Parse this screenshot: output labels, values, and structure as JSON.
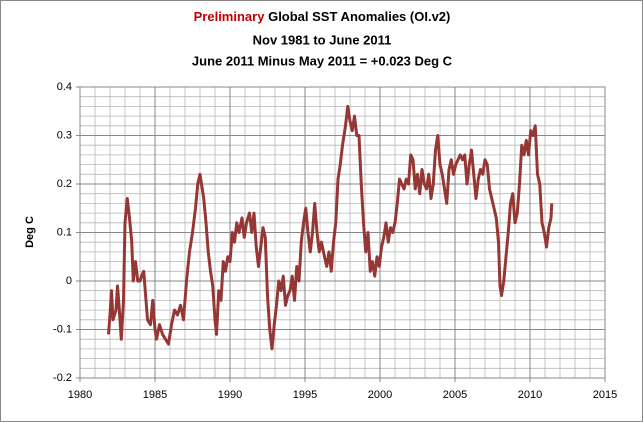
{
  "chart_data": {
    "type": "line",
    "title_highlight": "Preliminary",
    "title": "Global SST Anomalies  (OI.v2)",
    "subtitle": "Nov 1981 to June 2011",
    "annotation": "June 2011 Minus May 2011 = +0.023 Deg C",
    "ylabel": "Deg C",
    "highlight_color": "#c00000",
    "color": "#953735",
    "grid": true,
    "minor_grid": {
      "x": 1,
      "y": 0.02
    },
    "xlim": [
      1980,
      2015
    ],
    "xticks": [
      1980,
      1985,
      1990,
      1995,
      2000,
      2005,
      2010,
      2015
    ],
    "ylim": [
      -0.2,
      0.4
    ],
    "yticks": [
      0.4,
      0.3,
      0.2,
      0.1,
      0,
      -0.1,
      -0.2
    ],
    "x": [
      1981.9,
      1982.0,
      1982.1,
      1982.2,
      1982.4,
      1982.5,
      1982.6,
      1982.75,
      1982.9,
      1983.0,
      1983.15,
      1983.3,
      1983.45,
      1983.55,
      1983.7,
      1983.85,
      1984.0,
      1984.1,
      1984.25,
      1984.4,
      1984.5,
      1984.7,
      1984.85,
      1985.0,
      1985.1,
      1985.3,
      1985.5,
      1985.7,
      1985.9,
      1986.1,
      1986.3,
      1986.5,
      1986.7,
      1986.9,
      1987.1,
      1987.3,
      1987.5,
      1987.7,
      1987.85,
      1988.0,
      1988.1,
      1988.25,
      1988.4,
      1988.55,
      1988.7,
      1988.85,
      1989.0,
      1989.1,
      1989.25,
      1989.4,
      1989.55,
      1989.7,
      1989.85,
      1990.0,
      1990.15,
      1990.3,
      1990.45,
      1990.6,
      1990.8,
      1990.95,
      1991.1,
      1991.3,
      1991.45,
      1991.6,
      1991.75,
      1991.9,
      1992.05,
      1992.2,
      1992.35,
      1992.5,
      1992.65,
      1992.8,
      1992.95,
      1993.1,
      1993.25,
      1993.4,
      1993.55,
      1993.7,
      1993.85,
      1994.0,
      1994.15,
      1994.3,
      1994.45,
      1994.6,
      1994.75,
      1994.9,
      1995.05,
      1995.2,
      1995.35,
      1995.5,
      1995.65,
      1995.8,
      1995.95,
      1996.1,
      1996.3,
      1996.45,
      1996.6,
      1996.75,
      1996.9,
      1997.05,
      1997.2,
      1997.35,
      1997.5,
      1997.7,
      1997.85,
      1998.0,
      1998.15,
      1998.3,
      1998.45,
      1998.6,
      1998.75,
      1998.9,
      1999.05,
      1999.2,
      1999.35,
      1999.5,
      1999.65,
      1999.8,
      1999.95,
      2000.1,
      2000.25,
      2000.4,
      2000.55,
      2000.7,
      2000.85,
      2001.0,
      2001.15,
      2001.3,
      2001.45,
      2001.6,
      2001.75,
      2001.9,
      2002.05,
      2002.2,
      2002.35,
      2002.5,
      2002.65,
      2002.8,
      2002.95,
      2003.1,
      2003.25,
      2003.4,
      2003.55,
      2003.7,
      2003.85,
      2004.0,
      2004.15,
      2004.3,
      2004.45,
      2004.6,
      2004.75,
      2004.9,
      2005.05,
      2005.2,
      2005.35,
      2005.5,
      2005.65,
      2005.8,
      2005.95,
      2006.1,
      2006.25,
      2006.4,
      2006.55,
      2006.7,
      2006.85,
      2007.0,
      2007.15,
      2007.3,
      2007.45,
      2007.6,
      2007.75,
      2007.9,
      2008.0,
      2008.1,
      2008.25,
      2008.4,
      2008.55,
      2008.7,
      2008.85,
      2009.0,
      2009.15,
      2009.3,
      2009.45,
      2009.6,
      2009.75,
      2009.9,
      2010.05,
      2010.2,
      2010.35,
      2010.5,
      2010.65,
      2010.8,
      2010.95,
      2011.1,
      2011.25,
      2011.4,
      2011.45
    ],
    "values": [
      -0.11,
      -0.07,
      -0.02,
      -0.08,
      -0.06,
      -0.01,
      -0.05,
      -0.12,
      -0.04,
      0.12,
      0.17,
      0.13,
      0.08,
      0.0,
      0.04,
      0.0,
      0.0,
      0.01,
      0.02,
      -0.04,
      -0.08,
      -0.09,
      -0.04,
      -0.1,
      -0.12,
      -0.09,
      -0.11,
      -0.12,
      -0.13,
      -0.09,
      -0.06,
      -0.07,
      -0.05,
      -0.08,
      0.0,
      0.06,
      0.1,
      0.15,
      0.2,
      0.22,
      0.2,
      0.17,
      0.12,
      0.06,
      0.02,
      -0.01,
      -0.08,
      -0.11,
      -0.02,
      -0.04,
      0.04,
      0.02,
      0.05,
      0.04,
      0.1,
      0.08,
      0.12,
      0.1,
      0.13,
      0.09,
      0.12,
      0.14,
      0.1,
      0.14,
      0.07,
      0.03,
      0.07,
      0.11,
      0.09,
      -0.03,
      -0.1,
      -0.14,
      -0.09,
      -0.05,
      0.0,
      -0.02,
      0.01,
      -0.05,
      -0.03,
      -0.02,
      0.01,
      -0.04,
      0.03,
      0.0,
      0.08,
      0.12,
      0.15,
      0.1,
      0.06,
      0.1,
      0.16,
      0.1,
      0.06,
      0.08,
      0.05,
      0.03,
      0.06,
      0.02,
      0.08,
      0.12,
      0.21,
      0.24,
      0.28,
      0.32,
      0.36,
      0.33,
      0.31,
      0.34,
      0.3,
      0.3,
      0.2,
      0.12,
      0.06,
      0.1,
      0.02,
      0.04,
      0.01,
      0.05,
      0.03,
      0.07,
      0.09,
      0.12,
      0.08,
      0.11,
      0.1,
      0.12,
      0.16,
      0.21,
      0.2,
      0.19,
      0.21,
      0.2,
      0.26,
      0.25,
      0.19,
      0.22,
      0.18,
      0.23,
      0.2,
      0.19,
      0.22,
      0.17,
      0.2,
      0.27,
      0.3,
      0.24,
      0.22,
      0.19,
      0.16,
      0.23,
      0.25,
      0.22,
      0.24,
      0.25,
      0.26,
      0.25,
      0.26,
      0.2,
      0.24,
      0.27,
      0.22,
      0.17,
      0.21,
      0.23,
      0.22,
      0.25,
      0.24,
      0.19,
      0.17,
      0.15,
      0.13,
      0.08,
      -0.01,
      -0.03,
      0.0,
      0.05,
      0.1,
      0.16,
      0.18,
      0.12,
      0.14,
      0.2,
      0.28,
      0.26,
      0.29,
      0.26,
      0.31,
      0.3,
      0.32,
      0.22,
      0.2,
      0.12,
      0.1,
      0.07,
      0.11,
      0.13,
      0.16
    ]
  }
}
